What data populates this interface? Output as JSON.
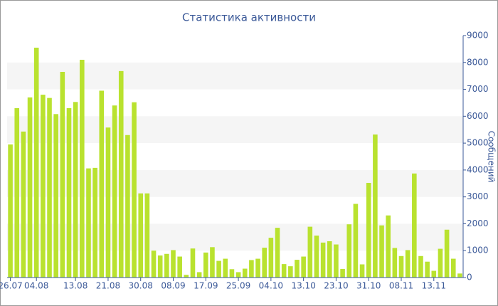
{
  "chart_data": {
    "type": "bar",
    "title": "Статистика активности",
    "y_label": "Сообщений",
    "categories": [
      "26.07",
      null,
      null,
      null,
      "04.08",
      null,
      null,
      null,
      null,
      null,
      "13.08",
      null,
      null,
      null,
      null,
      "21.08",
      null,
      null,
      null,
      null,
      "30.08",
      null,
      null,
      null,
      null,
      "08.09",
      null,
      null,
      null,
      null,
      "17.09",
      null,
      null,
      null,
      null,
      "25.09",
      null,
      null,
      null,
      null,
      "04.10",
      null,
      null,
      null,
      null,
      "13.10",
      null,
      null,
      null,
      null,
      "23.10",
      null,
      null,
      null,
      null,
      "31.10",
      null,
      null,
      null,
      null,
      "08.11",
      null,
      null,
      null,
      null,
      "13.11",
      null,
      null,
      null,
      null
    ],
    "values": [
      4950,
      6300,
      5430,
      6700,
      8550,
      6800,
      6680,
      6080,
      7650,
      6300,
      6530,
      8100,
      4060,
      4080,
      6950,
      5580,
      6400,
      7680,
      5300,
      6520,
      3130,
      3130,
      1000,
      820,
      880,
      1020,
      780,
      100,
      1080,
      200,
      930,
      1130,
      620,
      700,
      310,
      200,
      330,
      650,
      700,
      1110,
      1480,
      1850,
      500,
      420,
      660,
      780,
      1890,
      1560,
      1300,
      1350,
      1230,
      320,
      1980,
      2740,
      490,
      3520,
      5320,
      1940,
      2310,
      1100,
      800,
      1020,
      3870,
      800,
      590,
      250,
      1070,
      1780,
      700,
      150
    ],
    "color": "#b9e22f",
    "ylim": [
      0,
      9000
    ],
    "yticks": [
      0,
      1000,
      2000,
      3000,
      4000,
      5000,
      6000,
      7000,
      8000,
      9000
    ],
    "axis_side": "right",
    "grid": "bands"
  }
}
